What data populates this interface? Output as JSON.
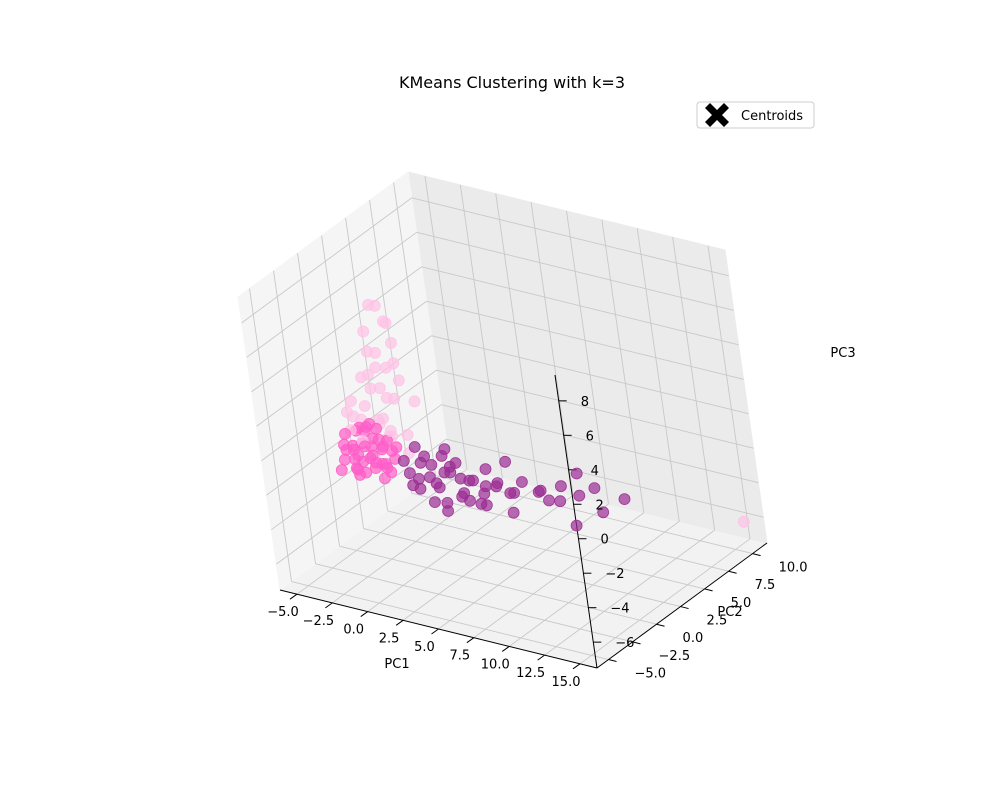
{
  "chart_data": {
    "type": "scatter",
    "projection": "3d",
    "title": "KMeans Clustering with k=3",
    "xlabel": "PC1",
    "ylabel": "PC2",
    "zlabel": "PC3",
    "xlim": [
      -6.2,
      16.2
    ],
    "ylim": [
      -6.2,
      11.5
    ],
    "zlim": [
      -7.5,
      9.5
    ],
    "xticks": [
      -5,
      -2.5,
      0,
      2.5,
      5,
      7.5,
      10,
      12.5,
      15
    ],
    "xtick_labels": [
      "−5.0",
      "−2.5",
      "0.0",
      "2.5",
      "5.0",
      "7.5",
      "10.0",
      "12.5",
      "15.0"
    ],
    "yticks": [
      -5,
      -2.5,
      0,
      2.5,
      5,
      7.5,
      10
    ],
    "ytick_labels": [
      "−5.0",
      "−2.5",
      "0.0",
      "2.5",
      "5.0",
      "7.5",
      "10.0"
    ],
    "zticks": [
      -6,
      -4,
      -2,
      0,
      2,
      4,
      6,
      8
    ],
    "ztick_labels": [
      "−6",
      "−4",
      "−2",
      "0",
      "2",
      "4",
      "6",
      "8"
    ],
    "grid": true,
    "legend": {
      "placement": "upper-right",
      "entries": [
        "Centroids"
      ]
    },
    "series": [
      {
        "cluster": 0,
        "color": "#FF5CC8",
        "points": [
          [
            -3.5,
            -1.8,
            -1.2
          ],
          [
            -3.2,
            -1.2,
            -0.8
          ],
          [
            -3.0,
            -1.5,
            -0.4
          ],
          [
            -2.8,
            -1.0,
            -1.5
          ],
          [
            -2.6,
            -2.0,
            -0.9
          ],
          [
            -2.4,
            -1.4,
            -0.2
          ],
          [
            -2.2,
            -0.8,
            -1.1
          ],
          [
            -2.0,
            -1.9,
            -1.6
          ],
          [
            -1.8,
            -1.1,
            0.1
          ],
          [
            -1.6,
            -0.6,
            -0.7
          ],
          [
            -1.4,
            -1.7,
            -1.3
          ],
          [
            -1.2,
            -1.0,
            -0.3
          ],
          [
            -1.0,
            -1.5,
            -1.9
          ],
          [
            -0.8,
            -0.7,
            -0.6
          ],
          [
            -0.6,
            -1.3,
            0.3
          ],
          [
            -0.4,
            -1.9,
            -1.0
          ],
          [
            -3.8,
            -1.3,
            -0.6
          ],
          [
            -3.4,
            -0.6,
            -1.4
          ],
          [
            -2.9,
            -2.3,
            -0.3
          ],
          [
            -2.5,
            -0.4,
            -0.8
          ],
          [
            -2.1,
            -2.5,
            -1.2
          ],
          [
            -1.7,
            -0.3,
            -1.7
          ],
          [
            -1.3,
            -2.2,
            -0.5
          ],
          [
            -0.9,
            -0.4,
            -1.2
          ],
          [
            -3.6,
            -2.1,
            -1.7
          ],
          [
            -3.1,
            -0.9,
            0.2
          ],
          [
            -2.7,
            -1.6,
            -2.0
          ],
          [
            -2.3,
            -1.1,
            0.4
          ],
          [
            -1.9,
            -1.8,
            -0.1
          ],
          [
            -1.5,
            -0.9,
            -1.4
          ],
          [
            -1.1,
            -2.0,
            -0.8
          ],
          [
            -0.7,
            -1.2,
            -1.6
          ],
          [
            -0.3,
            -0.9,
            -0.2
          ],
          [
            -2.0,
            -1.3,
            0.8
          ],
          [
            -1.5,
            -1.6,
            1.2
          ],
          [
            -2.6,
            -1.2,
            0.6
          ],
          [
            -1.2,
            -1.4,
            0.9
          ],
          [
            -0.8,
            -1.8,
            0.5
          ],
          [
            -3.3,
            -1.7,
            0.3
          ],
          [
            -2.4,
            -2.2,
            -1.3
          ]
        ]
      },
      {
        "cluster": 1,
        "color": "#9B2C93",
        "points": [
          [
            0.5,
            -1.0,
            -1.5
          ],
          [
            1.0,
            -0.5,
            -1.0
          ],
          [
            1.5,
            -1.5,
            -2.0
          ],
          [
            2.0,
            -0.8,
            -0.8
          ],
          [
            2.5,
            -1.2,
            -1.6
          ],
          [
            3.0,
            -0.4,
            -1.2
          ],
          [
            3.5,
            -1.6,
            -0.6
          ],
          [
            4.0,
            -0.9,
            -2.2
          ],
          [
            4.5,
            -0.3,
            -1.4
          ],
          [
            5.0,
            -1.3,
            -0.9
          ],
          [
            5.5,
            -0.7,
            -1.8
          ],
          [
            6.0,
            -1.1,
            -1.1
          ],
          [
            0.8,
            -1.8,
            -0.4
          ],
          [
            1.3,
            -0.2,
            -1.9
          ],
          [
            1.8,
            -1.9,
            -1.2
          ],
          [
            2.3,
            -0.1,
            -0.5
          ],
          [
            2.8,
            -2.0,
            -2.3
          ],
          [
            3.3,
            0.1,
            -1.7
          ],
          [
            3.8,
            -1.4,
            -0.3
          ],
          [
            4.3,
            -0.6,
            -2.5
          ],
          [
            4.8,
            -1.7,
            -1.5
          ],
          [
            5.3,
            0.0,
            -0.7
          ],
          [
            5.8,
            -1.5,
            -2.0
          ],
          [
            6.3,
            -0.5,
            -1.3
          ],
          [
            6.8,
            -1.0,
            -0.8
          ],
          [
            7.3,
            -0.2,
            -1.6
          ],
          [
            7.8,
            -1.2,
            -1.1
          ],
          [
            8.3,
            -0.6,
            -0.6
          ],
          [
            8.8,
            0.2,
            -1.4
          ],
          [
            9.5,
            -0.5,
            -0.9
          ],
          [
            10.2,
            0.3,
            -1.7
          ],
          [
            10.8,
            -0.2,
            -0.5
          ],
          [
            11.5,
            0.5,
            -1.2
          ],
          [
            12.3,
            1.0,
            -0.8
          ],
          [
            13.0,
            0.6,
            -1.9
          ],
          [
            1.2,
            -1.1,
            0.2
          ],
          [
            2.1,
            -1.5,
            0.0
          ],
          [
            3.2,
            -0.9,
            0.4
          ],
          [
            4.1,
            -1.2,
            -0.1
          ],
          [
            0.3,
            -0.6,
            -2.4
          ],
          [
            1.6,
            0.2,
            -2.6
          ],
          [
            2.7,
            -0.7,
            -2.9
          ],
          [
            3.6,
            -1.9,
            -2.7
          ],
          [
            5.1,
            -0.1,
            -2.8
          ],
          [
            6.5,
            0.4,
            -0.2
          ],
          [
            7.6,
            -0.9,
            -2.4
          ],
          [
            9.0,
            0.8,
            -2.1
          ],
          [
            11.0,
            1.2,
            -0.3
          ],
          [
            14.0,
            1.5,
            -1.3
          ],
          [
            12.0,
            -0.8,
            -2.3
          ]
        ]
      },
      {
        "cluster": 2,
        "color": "#FFC2E6",
        "points": [
          [
            -3.0,
            -1.5,
            0.5
          ],
          [
            -2.5,
            -1.0,
            1.0
          ],
          [
            -2.0,
            -1.8,
            0.2
          ],
          [
            -1.5,
            -0.6,
            0.8
          ],
          [
            -1.0,
            -1.3,
            1.4
          ],
          [
            -0.5,
            -0.9,
            0.4
          ],
          [
            0.0,
            -1.6,
            1.1
          ],
          [
            0.5,
            -0.7,
            0.6
          ],
          [
            -3.4,
            -1.1,
            1.3
          ],
          [
            -2.2,
            -2.1,
            1.7
          ],
          [
            -1.2,
            -0.3,
            0.0
          ],
          [
            -0.2,
            -1.9,
            1.9
          ],
          [
            0.8,
            -1.2,
            -0.2
          ],
          [
            -2.8,
            -0.5,
            -0.5
          ],
          [
            -1.8,
            -1.4,
            2.1
          ],
          [
            -0.8,
            -0.5,
            2.4
          ],
          [
            0.2,
            -1.1,
            2.8
          ],
          [
            -1.5,
            -1.0,
            3.0
          ],
          [
            -0.5,
            -1.4,
            3.4
          ],
          [
            0.5,
            -0.8,
            3.8
          ],
          [
            -1.0,
            -1.7,
            4.2
          ],
          [
            0.0,
            -1.2,
            4.6
          ],
          [
            -1.6,
            -0.7,
            5.0
          ],
          [
            -0.4,
            -1.5,
            5.5
          ],
          [
            0.4,
            -0.9,
            6.0
          ],
          [
            -1.2,
            -1.3,
            6.5
          ],
          [
            -0.2,
            -0.6,
            7.0
          ],
          [
            0.6,
            -1.4,
            7.4
          ],
          [
            -0.8,
            -1.0,
            8.0
          ],
          [
            0.3,
            -1.8,
            8.5
          ],
          [
            -1.4,
            -0.4,
            4.0
          ],
          [
            0.9,
            -1.6,
            5.2
          ],
          [
            -2.0,
            -1.1,
            3.6
          ],
          [
            1.2,
            -0.5,
            2.6
          ],
          [
            -2.6,
            -1.6,
            2.3
          ],
          [
            15.5,
            10.5,
            -6.0
          ]
        ]
      }
    ]
  }
}
